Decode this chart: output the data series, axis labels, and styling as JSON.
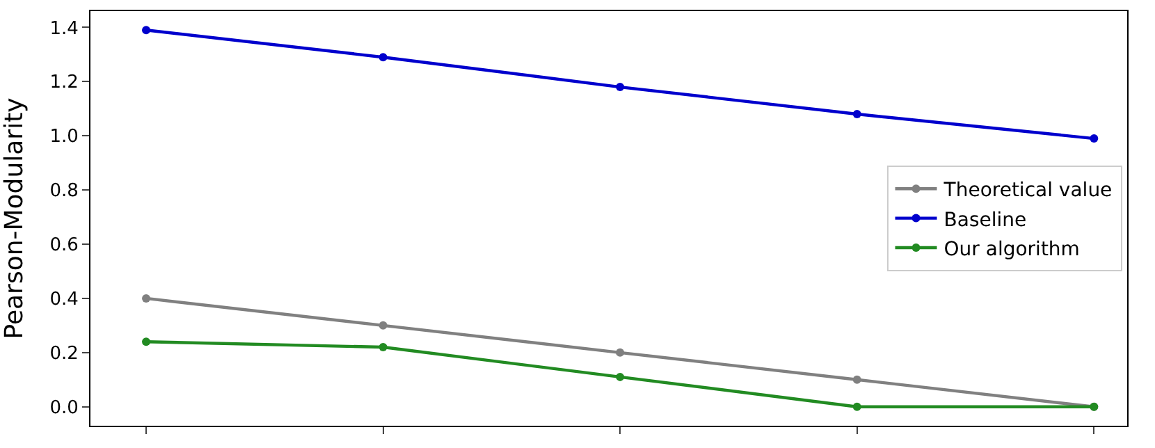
{
  "chart_data": {
    "type": "line",
    "ylabel": "Pearson-Modularity",
    "categories": [
      null,
      null,
      null,
      null,
      null
    ],
    "series": [
      {
        "name": "Theoretical value",
        "color": "#808080",
        "values": [
          0.4,
          0.3,
          0.2,
          0.1,
          0.0
        ]
      },
      {
        "name": "Baseline",
        "color": "#0000cd",
        "values": [
          1.39,
          1.29,
          1.18,
          1.08,
          0.99
        ]
      },
      {
        "name": "Our algorithm",
        "color": "#228b22",
        "values": [
          0.24,
          0.22,
          0.11,
          0.0,
          0.0
        ]
      }
    ],
    "ylim": [
      -0.07,
      1.46
    ],
    "yticks": [
      {
        "value": 0,
        "label": "0.0"
      },
      0.2,
      0.4,
      0.6,
      0.8,
      {
        "value": 1,
        "label": "1.0"
      },
      1.2,
      1.4
    ],
    "legend": "right",
    "marker": "circle",
    "line_style": "solid",
    "tick_labels": "y"
  }
}
